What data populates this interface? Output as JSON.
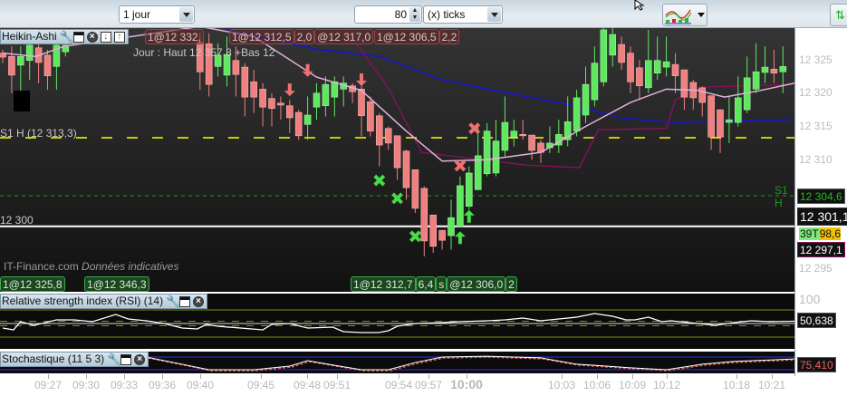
{
  "toolbar": {
    "period": "1 jour",
    "units_value": "80",
    "units_type": "(x) ticks",
    "chart_type_icon": "indicator-chart-icon",
    "right_icon": "arrows-icon"
  },
  "main": {
    "title": "Heikin-Ashi",
    "header_text": "Jour : Haut 12 357,8 +Bas 12",
    "support_label": "S1 H (12 313,3)",
    "support_label_right": "S1 H",
    "level_label": "12 300",
    "watermark_site": "IT-Finance.com",
    "watermark_note": "Données indicatives",
    "orders_top": [
      "1@12 332,",
      "1@12 312,5",
      "2,0",
      "@12 317,0",
      "1@12 306,5",
      "2,2"
    ],
    "orders_bottom": [
      "1@12 325,8",
      "1@12 346,3",
      "1@12 312,7",
      "6,4",
      "s",
      "@12 306,0",
      "2"
    ],
    "price_ticks": [
      "12 325",
      "12 320",
      "12 315",
      "12 310",
      "12 295"
    ],
    "price_tags": {
      "s1": "12 304,6",
      "cursor": "12 301,1",
      "ticks_left": "39T",
      "ticks_price": "98,6",
      "last": "12 297,1"
    },
    "colors": {
      "up": "#5fe85f",
      "down": "#f08080",
      "ma_blue": "#1515d8",
      "ma_pink": "#e2b2dc",
      "stepped": "#8a1160",
      "support": "#ffff00",
      "s1": "#1a9a1a"
    }
  },
  "chart_data": {
    "type": "candlestick",
    "levels": {
      "support": 12313.3,
      "s1": 12304.6,
      "line": 12300
    },
    "candles": [
      [
        12326,
        12326.5,
        12324.5,
        12325.4
      ],
      [
        12325.5,
        12327,
        12320,
        12322.7
      ],
      [
        12324.2,
        12327,
        12320,
        12325.5
      ],
      [
        12324.9,
        12328,
        12322,
        12327.2
      ],
      [
        12326.8,
        12327.5,
        12321.5,
        12324.6
      ],
      [
        12325.7,
        12326.5,
        12320.5,
        12322.6
      ],
      [
        12324,
        12328,
        12320.5,
        12327.2
      ],
      [
        12326.2,
        12328,
        12325.5,
        12327.2
      ],
      null,
      null,
      null,
      null,
      null,
      null,
      null,
      null,
      null,
      null,
      null,
      null,
      null,
      null,
      [
        12327.6,
        12329,
        12320.5,
        12323.2
      ],
      [
        12327.4,
        12329,
        12319.5,
        12321.3
      ],
      [
        12324,
        12327.5,
        12322.5,
        12325.7
      ],
      [
        12322.7,
        12328.5,
        12321,
        12325.8
      ],
      [
        12324.9,
        12327,
        12319.5,
        12322.8
      ],
      [
        12323.9,
        12324.5,
        12316.5,
        12319.4
      ],
      [
        12321.7,
        12323.5,
        12317,
        12319.4
      ],
      [
        12320.6,
        12321.5,
        12315,
        12317.9
      ],
      [
        12319.2,
        12320,
        12315,
        12317.7
      ],
      [
        12318.5,
        12319.5,
        12316,
        12318.2
      ],
      [
        12318.1,
        12319,
        12314,
        12316.3
      ],
      [
        12317.1,
        12317.5,
        12313,
        12313.6
      ],
      [
        12315.3,
        12319.5,
        12313,
        12316.7
      ],
      [
        12317.9,
        12321.5,
        12316,
        12320
      ],
      [
        12318.1,
        12322.5,
        12316.5,
        12321.3
      ],
      [
        12319.4,
        12322.5,
        12316.5,
        12321.7
      ],
      [
        12320.6,
        12322.5,
        12318,
        12321.5
      ],
      [
        12321.1,
        12321.5,
        12318.5,
        12320.2
      ],
      [
        12320.6,
        12322,
        12313.5,
        12316.6
      ],
      [
        12318.7,
        12319.5,
        12313.5,
        12314.3
      ],
      [
        12316.6,
        12317,
        12309,
        12312.2
      ],
      [
        12314.7,
        12315,
        12311.5,
        12312.5
      ],
      [
        12313.6,
        12313.6,
        12307,
        12308.8
      ],
      [
        12311.3,
        12311.5,
        12304,
        12305.8
      ],
      [
        12308.5,
        12308.5,
        12302,
        12302.7
      ],
      [
        12305.7,
        12306,
        12295.5,
        12297.8
      ],
      [
        12301.7,
        12301.7,
        12296,
        12297
      ],
      [
        12299.4,
        12299.4,
        12296.5,
        12297.9
      ],
      [
        12298.6,
        12304,
        12296.5,
        12301.3
      ],
      [
        12300,
        12307.5,
        12300,
        12306.1
      ],
      [
        12303,
        12309,
        12302.5,
        12308
      ],
      [
        12305.5,
        12315,
        12305.5,
        12310.6
      ],
      [
        12307.9,
        12315.5,
        12307.5,
        12314.3
      ],
      [
        12308,
        12316,
        12307.5,
        12312.8
      ],
      [
        12311.4,
        12319.5,
        12310.5,
        12315.6
      ],
      [
        12313.4,
        12316,
        12312,
        12314.3
      ],
      [
        12313.8,
        12316,
        12313,
        12313.6
      ],
      [
        12313.7,
        12313.7,
        12310,
        12311.4
      ],
      [
        12312.5,
        12313,
        12309.5,
        12311.1
      ],
      [
        12311.8,
        12315,
        12311,
        12312.5
      ],
      [
        12312.2,
        12316,
        12311,
        12313.8
      ],
      [
        12313,
        12319.5,
        12312,
        12315.7
      ],
      [
        12314.3,
        12320.5,
        12313.5,
        12319.3
      ],
      [
        12316.7,
        12324,
        12315.5,
        12321.3
      ],
      [
        12319,
        12327,
        12318,
        12324.5
      ],
      [
        12321.7,
        12331,
        12321,
        12329.5
      ],
      [
        12325.7,
        12331,
        12324,
        12328.8
      ],
      [
        12327.3,
        12328.5,
        12323.5,
        12324.6
      ],
      [
        12326,
        12327,
        12320,
        12321.7
      ],
      [
        12323.8,
        12325,
        12319,
        12321.1
      ],
      [
        12320.8,
        12329.5,
        12320,
        12324.9
      ],
      [
        12323,
        12328.5,
        12322,
        12324.9
      ],
      [
        12323.9,
        12328.5,
        12322.5,
        12324.7
      ],
      [
        12324.3,
        12326,
        12320,
        12322.6
      ],
      [
        12323.5,
        12323.5,
        12317.5,
        12319.4
      ],
      [
        12321.6,
        12322,
        12317.5,
        12319.3
      ],
      [
        12320.8,
        12321,
        12316.5,
        12318.6
      ],
      [
        12319.6,
        12319.6,
        12311.5,
        12313.4
      ],
      [
        12317.5,
        12317.5,
        12311,
        12313.4
      ],
      [
        12315.6,
        12319.5,
        12312.5,
        12316
      ],
      [
        12315.6,
        12322.5,
        12315,
        12319.3
      ],
      [
        12317.5,
        12325.5,
        12317,
        12322.3
      ],
      [
        12320.6,
        12327.5,
        12320,
        12323.2
      ],
      [
        12323.1,
        12327,
        12321.5,
        12323.9
      ],
      [
        12323.6,
        12326.5,
        12321.5,
        12323
      ],
      [
        12323.2,
        12327,
        12320,
        12324
      ]
    ],
    "ma_blue": [
      [
        25,
        12329.5
      ],
      [
        35,
        12326.6
      ],
      [
        42,
        12325.5
      ],
      [
        49,
        12322
      ],
      [
        56,
        12320.1
      ],
      [
        63,
        12318.3
      ],
      [
        69,
        12316.3
      ],
      [
        74.5,
        12315.6
      ],
      [
        88,
        12316
      ]
    ],
    "ma_pink": [
      [
        0,
        12326
      ],
      [
        3.7,
        12325.5
      ],
      [
        6.8,
        12327
      ],
      [
        22,
        12330
      ],
      [
        28,
        12328.5
      ],
      [
        35,
        12322.4
      ],
      [
        40,
        12320.4
      ],
      [
        45,
        12314.3
      ],
      [
        49,
        12309.8
      ],
      [
        54,
        12310
      ],
      [
        60,
        12311.1
      ],
      [
        65,
        12315
      ],
      [
        70,
        12318.6
      ],
      [
        74,
        12320.6
      ],
      [
        77.5,
        12320.4
      ],
      [
        80.5,
        12319.4
      ],
      [
        84.5,
        12320.4
      ],
      [
        88.3,
        12321.5
      ]
    ],
    "stepped": [
      [
        38,
        12330
      ],
      [
        43,
        12320.8
      ],
      [
        46.7,
        12311.1
      ],
      [
        58.3,
        12309.2
      ],
      [
        64.3,
        12308.8
      ],
      [
        66.4,
        12314.5
      ],
      [
        74,
        12314.7
      ],
      [
        75,
        12319
      ],
      [
        78,
        12320.9
      ],
      [
        88,
        12321.3
      ]
    ],
    "markers": [
      {
        "type": "sell-arrow",
        "bar": 34,
        "price": 12323.4
      },
      {
        "type": "sell-arrow",
        "bar": 32,
        "price": 12320.5
      },
      {
        "type": "sell-arrow",
        "bar": 40,
        "price": 12322
      },
      {
        "type": "buy-cross",
        "bar": 42,
        "price": 12306.9
      },
      {
        "type": "buy-cross",
        "bar": 44,
        "price": 12304.2
      },
      {
        "type": "buy-cross",
        "bar": 46,
        "price": 12298.5
      },
      {
        "type": "sell-cross",
        "bar": 52.6,
        "price": 12314.7
      },
      {
        "type": "sell-cross",
        "bar": 51,
        "price": 12309.1
      },
      {
        "type": "buy-arrow",
        "bar": 52,
        "price": 12301.5
      },
      {
        "type": "buy-arrow",
        "bar": 51,
        "price": 12298.3
      }
    ],
    "time_labels": [
      [
        "09:27",
        53
      ],
      [
        "09:30",
        95
      ],
      [
        "09:33",
        137
      ],
      [
        "09:36",
        179
      ],
      [
        "09:40",
        221
      ],
      [
        "09:45",
        288
      ],
      [
        "09:48",
        339
      ],
      [
        "09:51",
        372
      ],
      [
        "09:54",
        440
      ],
      [
        "09:57",
        473
      ],
      [
        "10:00",
        515
      ],
      [
        "10:03",
        620
      ],
      [
        "10:06",
        659
      ],
      [
        "10:09",
        698
      ],
      [
        "10:12",
        736
      ],
      [
        "10:18",
        813
      ],
      [
        "10:21",
        852
      ]
    ]
  },
  "rsi": {
    "title": "Relative strength index (RSI) (14)",
    "axis_max": "100",
    "value": "50,638",
    "levels": [
      80,
      55,
      50,
      45,
      20
    ],
    "series": [
      [
        0,
        40
      ],
      [
        1.2,
        36
      ],
      [
        2,
        54
      ],
      [
        3.5,
        46
      ],
      [
        6,
        58
      ],
      [
        8,
        58
      ],
      [
        10,
        54
      ],
      [
        12.6,
        70
      ],
      [
        14,
        60
      ],
      [
        16,
        56
      ],
      [
        18,
        50
      ],
      [
        20,
        40
      ],
      [
        21.7,
        38
      ],
      [
        22.7,
        48
      ],
      [
        24,
        44
      ],
      [
        29,
        36
      ],
      [
        30,
        48
      ],
      [
        32,
        50
      ],
      [
        34,
        40
      ],
      [
        36.8,
        42
      ],
      [
        38,
        32
      ],
      [
        40,
        30
      ],
      [
        41.9,
        30
      ],
      [
        43,
        34
      ],
      [
        44,
        44
      ],
      [
        46,
        50
      ],
      [
        49,
        52
      ],
      [
        51,
        54
      ],
      [
        54,
        56
      ],
      [
        56,
        58
      ],
      [
        58,
        62
      ],
      [
        60,
        56
      ],
      [
        62,
        60
      ],
      [
        64,
        64
      ],
      [
        66,
        72
      ],
      [
        68,
        66
      ],
      [
        69.5,
        58
      ],
      [
        70.5,
        58
      ],
      [
        72,
        64
      ],
      [
        73.5,
        54
      ],
      [
        74.5,
        56
      ],
      [
        76.5,
        52
      ],
      [
        79.5,
        46
      ],
      [
        81.5,
        52
      ],
      [
        83.5,
        56
      ],
      [
        85.5,
        54
      ],
      [
        88.3,
        55
      ]
    ]
  },
  "stoch": {
    "title": "Stochastique (11 5 3)",
    "value": "75,410",
    "levels": [
      80,
      20
    ],
    "series": [
      [
        14,
        84
      ],
      [
        16,
        80
      ],
      [
        20,
        46
      ],
      [
        23,
        20
      ],
      [
        28,
        20
      ],
      [
        32,
        37
      ],
      [
        34,
        63
      ],
      [
        37,
        41
      ],
      [
        40,
        20
      ],
      [
        43,
        20
      ],
      [
        46,
        54
      ],
      [
        49,
        80
      ],
      [
        54,
        84
      ],
      [
        60,
        76
      ],
      [
        64,
        46
      ],
      [
        66,
        41
      ],
      [
        70,
        29
      ],
      [
        74,
        20
      ],
      [
        78,
        46
      ],
      [
        81.5,
        59
      ],
      [
        88.3,
        71
      ]
    ]
  }
}
